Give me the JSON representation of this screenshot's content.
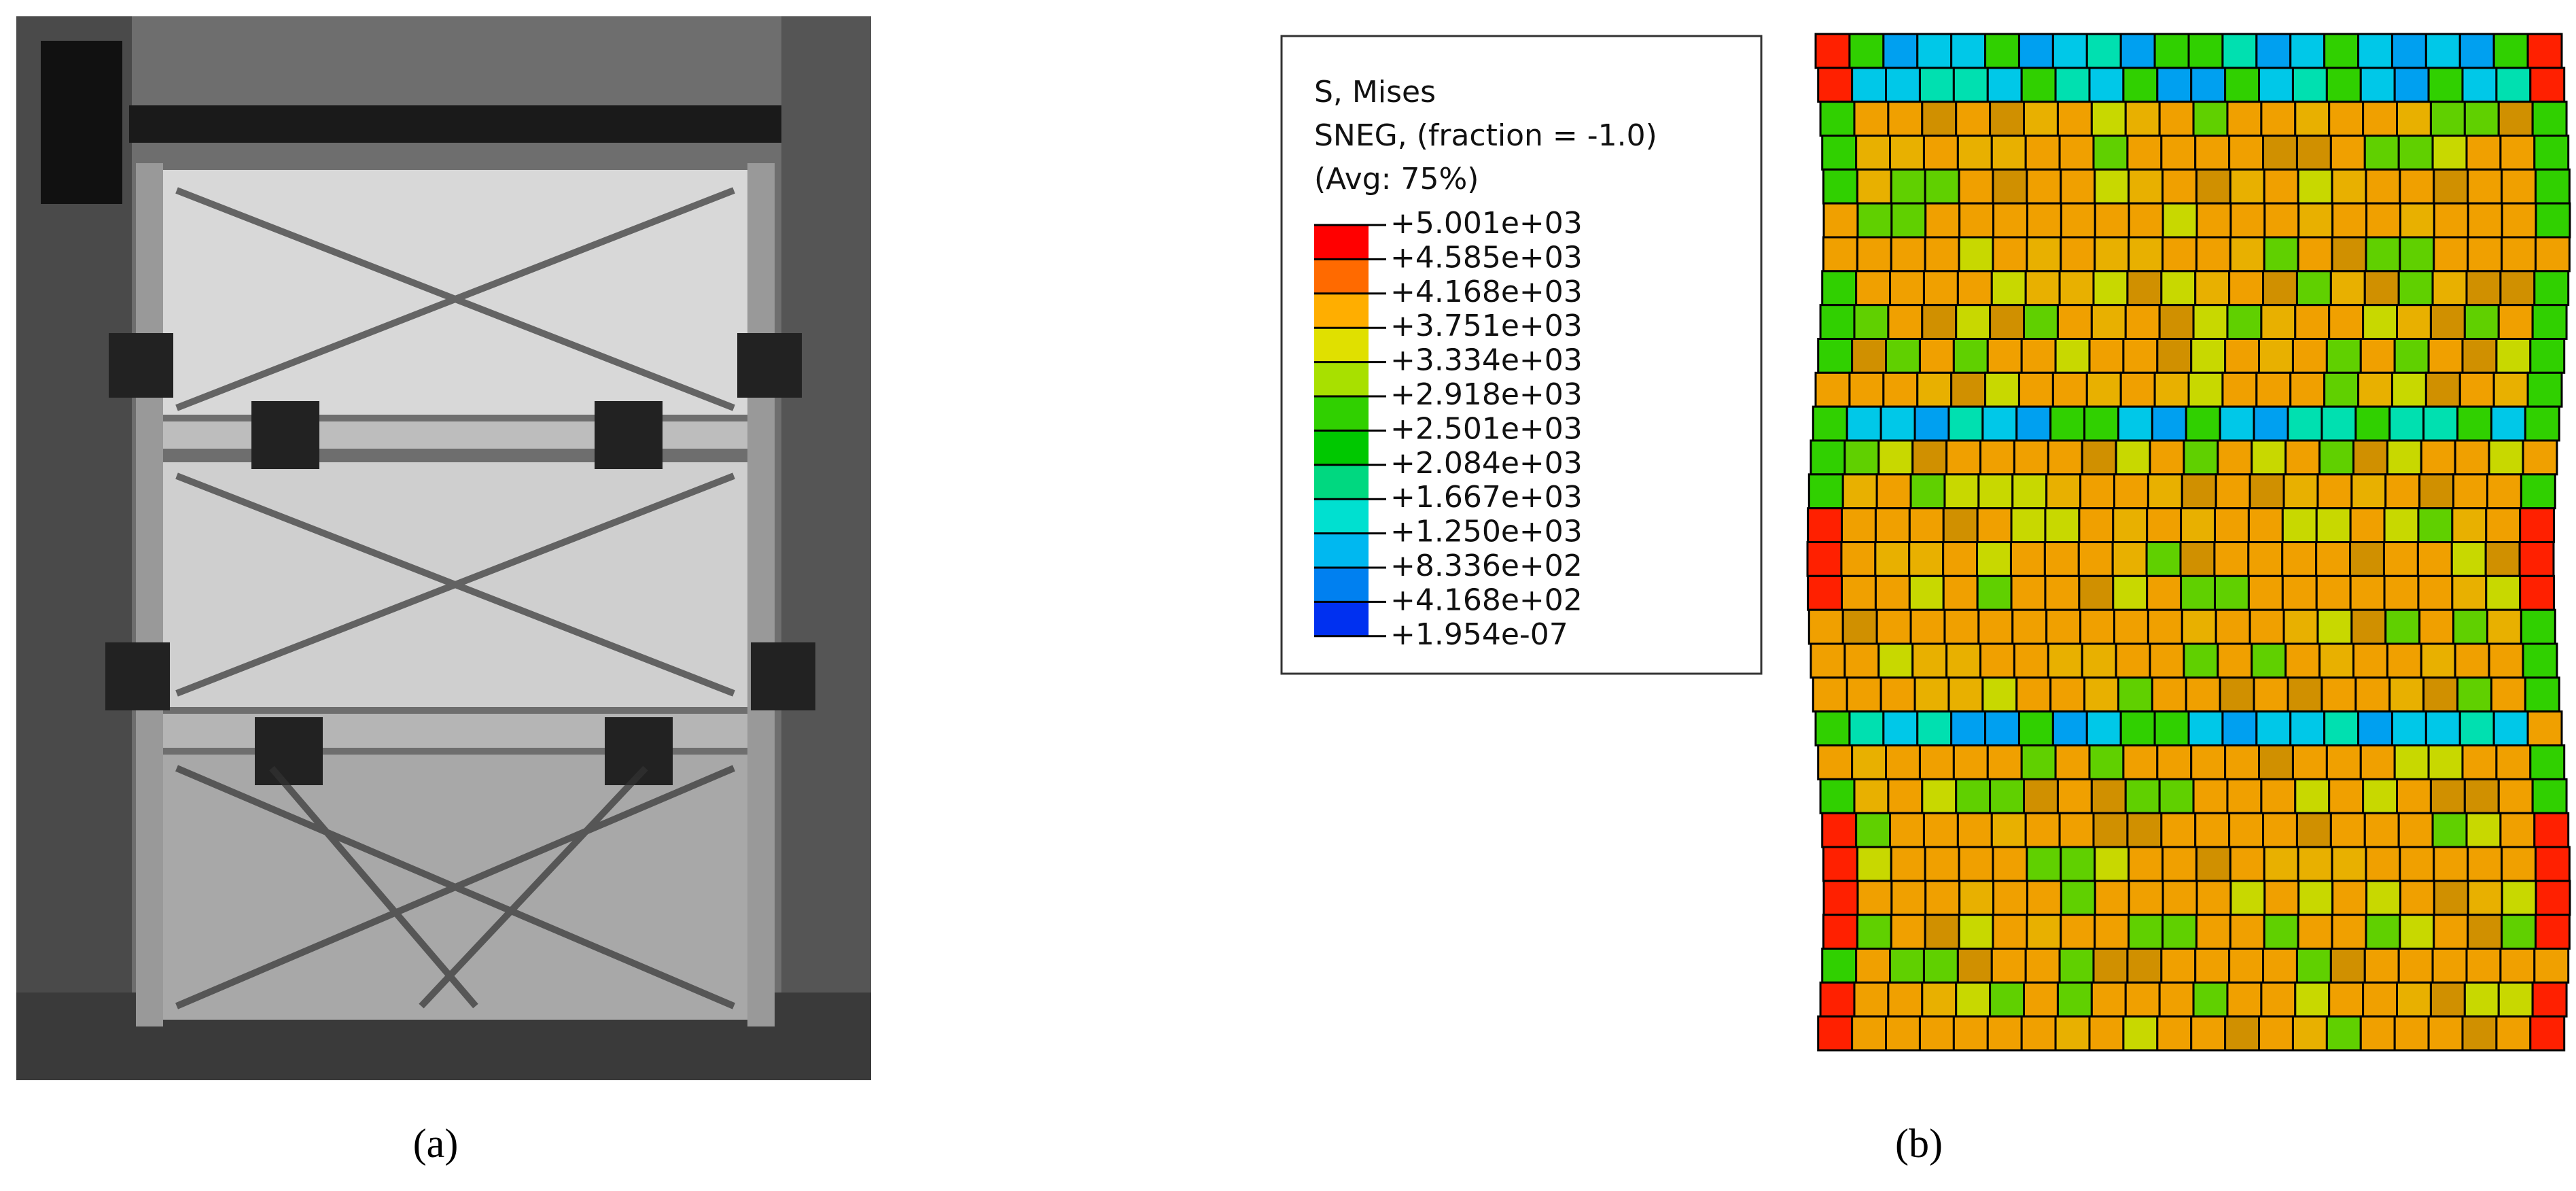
{
  "panel_a": {
    "label": "(a)"
  },
  "panel_b": {
    "label": "(b)",
    "legend": {
      "title_lines": [
        "S, Mises",
        "SNEG, (fraction = -1.0)",
        "(Avg: 75%)"
      ],
      "labels": [
        "+5.001e+03",
        "+4.585e+03",
        "+4.168e+03",
        "+3.751e+03",
        "+3.334e+03",
        "+2.918e+03",
        "+2.501e+03",
        "+2.084e+03",
        "+1.667e+03",
        "+1.250e+03",
        "+8.336e+02",
        "+4.168e+02",
        "+1.954e-07"
      ]
    }
  }
}
